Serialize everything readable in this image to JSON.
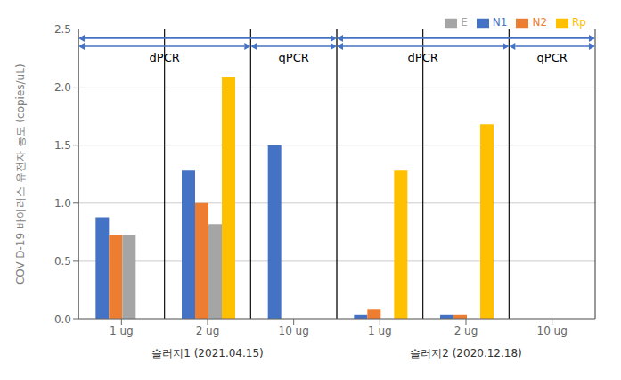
{
  "chart_data": {
    "type": "bar",
    "ylabel": "COVID-19 바이러스 유전자 농도 (copies/uL)",
    "categories": [
      "1 ug",
      "2 ug",
      "10 ug",
      "1 ug",
      "2 ug",
      "10 ug"
    ],
    "series": [
      {
        "name": "N1",
        "color": "#4472C4",
        "values": [
          0.88,
          1.28,
          1.5,
          0.04,
          0.04,
          0.0
        ]
      },
      {
        "name": "N2",
        "color": "#ED7D31",
        "values": [
          0.73,
          1.0,
          0.0,
          0.09,
          0.04,
          0.0
        ]
      },
      {
        "name": "E",
        "color": "#A5A5A5",
        "values": [
          0.73,
          0.82,
          0.0,
          0.0,
          0.0,
          0.0
        ]
      },
      {
        "name": "Rp",
        "color": "#FFC000",
        "values": [
          0.0,
          2.09,
          0.0,
          1.28,
          1.68,
          0.0
        ]
      }
    ],
    "ylim": [
      0,
      2.5
    ],
    "yticks": [
      {
        "value": 0,
        "label": "0.0"
      },
      0.5,
      {
        "value": 1,
        "label": "1.0"
      },
      1.5,
      {
        "value": 2,
        "label": "2.0"
      },
      2.5
    ],
    "grid": true,
    "legend": "upper right",
    "annotations": [
      {
        "text": "dPCR",
        "y": 2.2,
        "from": 0,
        "to": 1
      },
      {
        "text": "qPCR",
        "y": 2.2,
        "from": 2,
        "to": 2
      },
      {
        "text": "dPCR",
        "y": 2.2,
        "from": 3,
        "to": 4
      },
      {
        "text": "qPCR",
        "y": 2.2,
        "from": 5,
        "to": 5
      }
    ],
    "arrows": [
      {
        "from": 0,
        "to": 2,
        "y": 2.42,
        "color": "#4472C4"
      },
      {
        "from": 3,
        "to": 5,
        "y": 2.42,
        "color": "#4472C4"
      },
      {
        "from": 0,
        "to": 1,
        "y": 2.35,
        "color": "#4472C4"
      },
      {
        "from": 2,
        "to": 2,
        "y": 2.35,
        "color": "#4472C4"
      },
      {
        "from": 3,
        "to": 4,
        "y": 2.35,
        "color": "#4472C4"
      },
      {
        "from": 5,
        "to": 5,
        "y": 2.35,
        "color": "#4472C4"
      }
    ],
    "group_labels": [
      {
        "text": "슬러지1 (2021.04.15)",
        "from": 0,
        "to": 2
      },
      {
        "text": "슬러지2 (2020.12.18)",
        "from": 3,
        "to": 5
      }
    ]
  }
}
